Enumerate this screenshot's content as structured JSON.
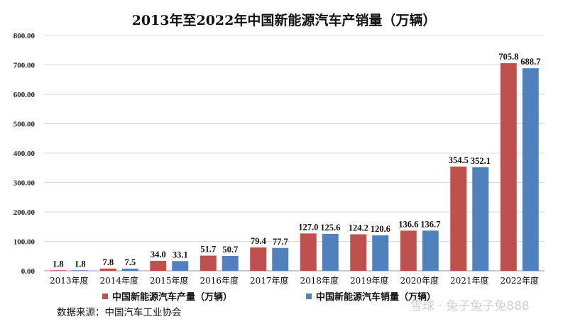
{
  "chart_data": {
    "type": "bar",
    "title": "2013年至2022年中国新能源汽车产销量（万辆）",
    "categories": [
      "2013年度",
      "2014年度",
      "2015年度",
      "2016年度",
      "2017年度",
      "2018年度",
      "2019年度",
      "2020年度",
      "2021年度",
      "2022年度"
    ],
    "series": [
      {
        "name": "中国新能源汽车产量（万辆）",
        "color": "#c0504d",
        "values": [
          1.8,
          7.8,
          34.0,
          51.7,
          79.4,
          127.0,
          124.2,
          136.6,
          354.5,
          705.8
        ],
        "labels": [
          "1.8",
          "7.8",
          "34.0",
          "51.7",
          "79.4",
          "127.0",
          "124.2",
          "136.6",
          "354.5",
          "705.8"
        ]
      },
      {
        "name": "中国新能源汽车销量（万辆）",
        "color": "#4f81bd",
        "values": [
          1.8,
          7.5,
          33.1,
          50.7,
          77.7,
          125.6,
          120.6,
          136.7,
          352.1,
          688.7
        ],
        "labels": [
          "1.8",
          "7.5",
          "33.1",
          "50.7",
          "77.7",
          "125.6",
          "120.6",
          "136.7",
          "352.1",
          "688.7"
        ]
      }
    ],
    "ylim": [
      0,
      800
    ],
    "yticks": [
      "0.00",
      "100.00",
      "200.00",
      "300.00",
      "400.00",
      "500.00",
      "600.00",
      "700.00",
      "800.00"
    ],
    "grid": true,
    "legend_position": "bottom",
    "xlabel": "",
    "ylabel": ""
  },
  "source_note": "数据来源：中国汽车工业协会",
  "watermark": "雪球 · 兔子兔子兔888"
}
